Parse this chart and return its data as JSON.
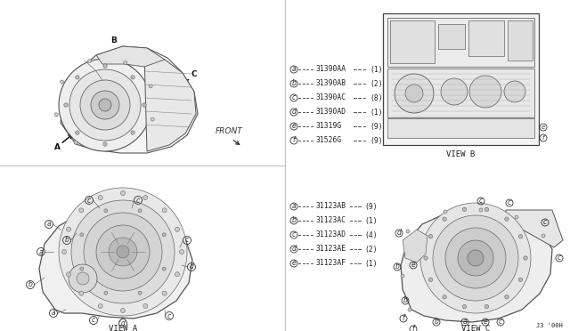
{
  "bg_color": "#ffffff",
  "line_color": "#333333",
  "text_color": "#222222",
  "divider_color": "#bbbbbb",
  "title_bottom_right": "J3 '00H",
  "view_a_label": "VIEW A",
  "view_b_label": "VIEW B",
  "view_c_label": "VIEW C",
  "upper_legend": [
    {
      "circle": "a",
      "part": "31390AA",
      "qty": "(1)"
    },
    {
      "circle": "b",
      "part": "31390AB",
      "qty": "(2)"
    },
    {
      "circle": "c",
      "part": "31390AC",
      "qty": "(8)"
    },
    {
      "circle": "d",
      "part": "31390AD",
      "qty": "(1)"
    },
    {
      "circle": "e",
      "part": "31319G",
      "qty": "(9)"
    },
    {
      "circle": "f",
      "part": "31526G",
      "qty": "(9)"
    }
  ],
  "lower_legend": [
    {
      "circle": "a",
      "part": "31123AB",
      "qty": "(9)"
    },
    {
      "circle": "b",
      "part": "31123AC",
      "qty": "(1)"
    },
    {
      "circle": "c",
      "part": "31123AD",
      "qty": "(4)"
    },
    {
      "circle": "d",
      "part": "31123AE",
      "qty": "(2)"
    },
    {
      "circle": "e",
      "part": "31123AF",
      "qty": "(1)"
    }
  ],
  "font_size_tiny": 5.0,
  "font_size_small": 5.8,
  "font_size_label": 6.5,
  "font_size_view": 6.5
}
